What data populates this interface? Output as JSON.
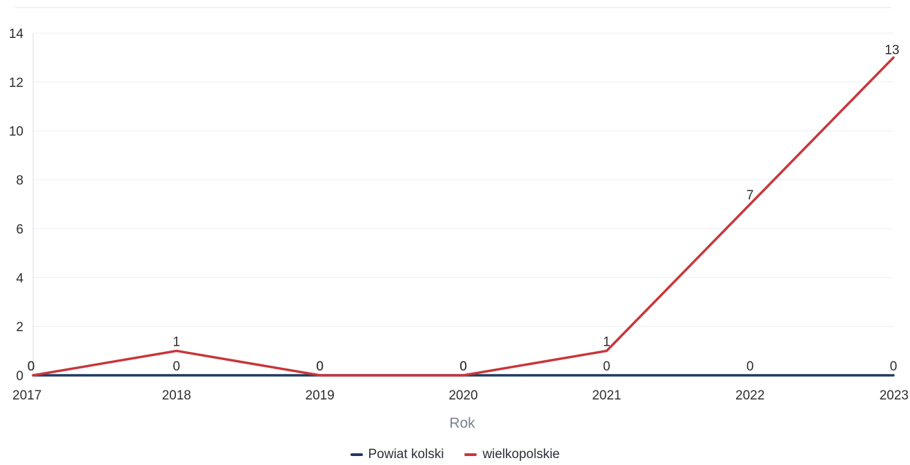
{
  "chart_data": {
    "type": "line",
    "x": [
      2017,
      2018,
      2019,
      2020,
      2021,
      2022,
      2023
    ],
    "xlabel": "Rok",
    "ylabel": "",
    "ylim": [
      0,
      14
    ],
    "yticks": [
      0,
      2,
      4,
      6,
      8,
      10,
      12,
      14
    ],
    "grid": true,
    "legend_position": "bottom-center",
    "series": [
      {
        "name": "Powiat kolski",
        "color": "#1f3a63",
        "values": [
          0,
          0,
          0,
          0,
          0,
          0,
          0
        ]
      },
      {
        "name": "wielkopolskie",
        "color": "#c8363a",
        "values": [
          0,
          1,
          0,
          0,
          1,
          7,
          13
        ]
      }
    ]
  }
}
